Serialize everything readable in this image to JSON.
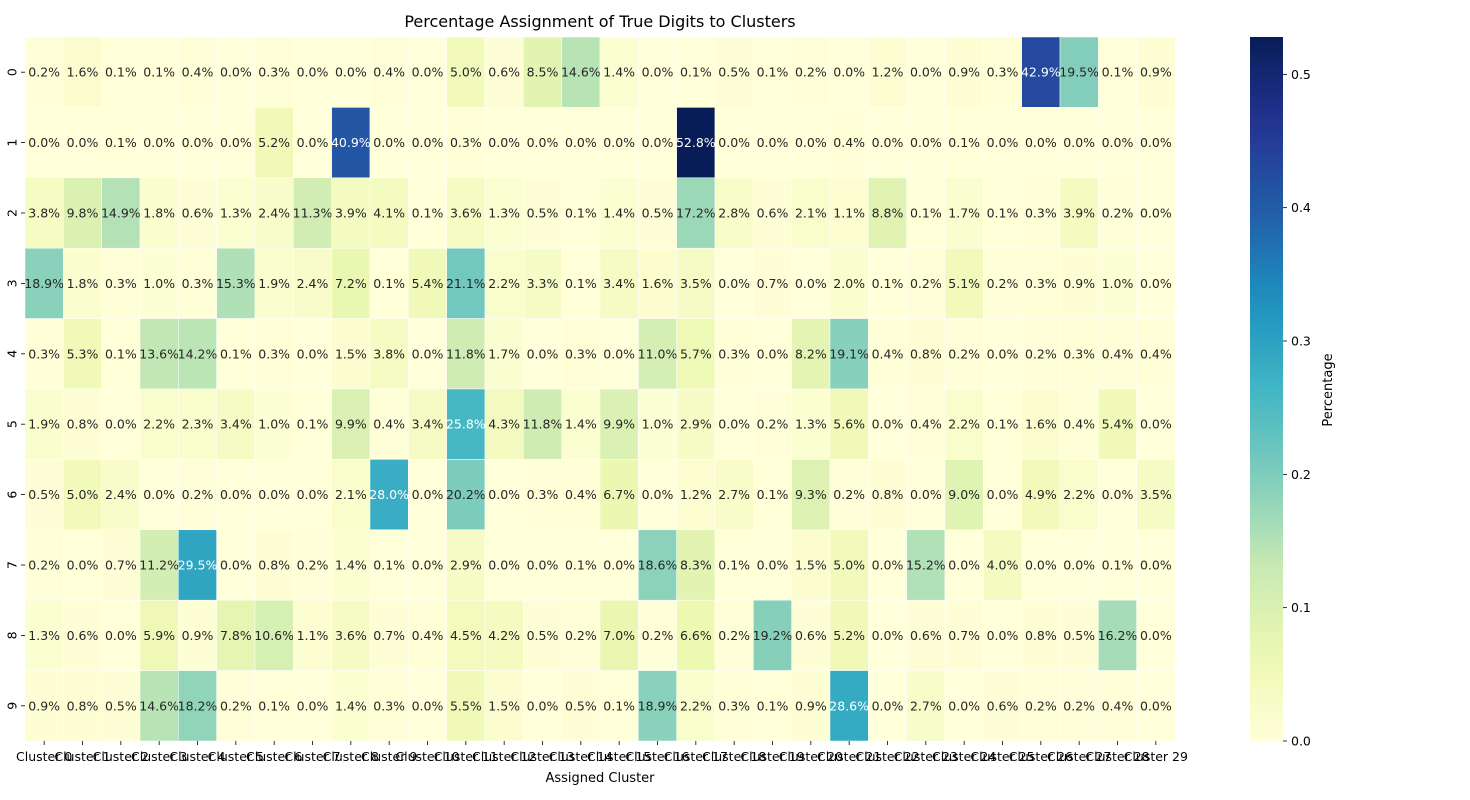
{
  "chart_data": {
    "type": "heatmap",
    "title": "Percentage Assignment of True Digits to Clusters",
    "xlabel": "Assigned Cluster",
    "ylabel": "",
    "colorbar_label": "Percentage",
    "colormap": "YlGnBu",
    "vmin": 0.0,
    "vmax": 0.528,
    "colorbar_ticks": [
      0.0,
      0.1,
      0.2,
      0.3,
      0.4,
      0.5
    ],
    "colorbar_tick_labels": [
      "0.0",
      "0.1",
      "0.2",
      "0.3",
      "0.4",
      "0.5"
    ],
    "x_categories": [
      "Cluster 0",
      "Cluster 1",
      "Cluster 2",
      "Cluster 3",
      "Cluster 4",
      "Cluster 5",
      "Cluster 6",
      "Cluster 7",
      "Cluster 8",
      "Cluster 9",
      "Cluster 10",
      "Cluster 11",
      "Cluster 12",
      "Cluster 13",
      "Cluster 14",
      "Cluster 15",
      "Cluster 16",
      "Cluster 17",
      "Cluster 18",
      "Cluster 19",
      "Cluster 20",
      "Cluster 21",
      "Cluster 22",
      "Cluster 23",
      "Cluster 24",
      "Cluster 25",
      "Cluster 26",
      "Cluster 27",
      "Cluster 28",
      "Cluster 29"
    ],
    "y_categories": [
      "0",
      "1",
      "2",
      "3",
      "4",
      "5",
      "6",
      "7",
      "8",
      "9"
    ],
    "values": [
      [
        0.002,
        0.016,
        0.001,
        0.001,
        0.004,
        0.0,
        0.003,
        0.0,
        0.0,
        0.004,
        0.0,
        0.05,
        0.006,
        0.085,
        0.146,
        0.014,
        0.0,
        0.001,
        0.005,
        0.001,
        0.002,
        0.0,
        0.012,
        0.0,
        0.009,
        0.003,
        0.429,
        0.195,
        0.001,
        0.009
      ],
      [
        0.0,
        0.0,
        0.001,
        0.0,
        0.0,
        0.0,
        0.052,
        0.0,
        0.409,
        0.0,
        0.0,
        0.003,
        0.0,
        0.0,
        0.0,
        0.0,
        0.0,
        0.528,
        0.0,
        0.0,
        0.0,
        0.004,
        0.0,
        0.0,
        0.001,
        0.0,
        0.0,
        0.0,
        0.0,
        0.0
      ],
      [
        0.038,
        0.098,
        0.149,
        0.018,
        0.006,
        0.013,
        0.024,
        0.113,
        0.039,
        0.041,
        0.001,
        0.036,
        0.013,
        0.005,
        0.001,
        0.014,
        0.005,
        0.172,
        0.028,
        0.006,
        0.021,
        0.011,
        0.088,
        0.001,
        0.017,
        0.001,
        0.003,
        0.039,
        0.002,
        0.0
      ],
      [
        0.189,
        0.018,
        0.003,
        0.01,
        0.003,
        0.153,
        0.019,
        0.024,
        0.072,
        0.001,
        0.054,
        0.211,
        0.022,
        0.033,
        0.001,
        0.034,
        0.016,
        0.035,
        0.0,
        0.007,
        0.0,
        0.02,
        0.001,
        0.002,
        0.051,
        0.002,
        0.003,
        0.009,
        0.01,
        0.0
      ],
      [
        0.003,
        0.053,
        0.001,
        0.136,
        0.142,
        0.001,
        0.003,
        0.0,
        0.015,
        0.038,
        0.0,
        0.118,
        0.017,
        0.0,
        0.003,
        0.0,
        0.11,
        0.057,
        0.003,
        0.0,
        0.082,
        0.191,
        0.004,
        0.008,
        0.002,
        0.0,
        0.002,
        0.003,
        0.004,
        0.004
      ],
      [
        0.019,
        0.008,
        0.0,
        0.022,
        0.023,
        0.034,
        0.01,
        0.001,
        0.099,
        0.004,
        0.034,
        0.258,
        0.043,
        0.118,
        0.014,
        0.099,
        0.01,
        0.029,
        0.0,
        0.002,
        0.013,
        0.056,
        0.0,
        0.004,
        0.022,
        0.001,
        0.016,
        0.004,
        0.054,
        0.0
      ],
      [
        0.005,
        0.05,
        0.024,
        0.0,
        0.002,
        0.0,
        0.0,
        0.0,
        0.021,
        0.28,
        0.0,
        0.202,
        0.0,
        0.003,
        0.004,
        0.067,
        0.0,
        0.012,
        0.027,
        0.001,
        0.093,
        0.002,
        0.008,
        0.0,
        0.09,
        0.0,
        0.049,
        0.022,
        0.0,
        0.035
      ],
      [
        0.002,
        0.0,
        0.007,
        0.112,
        0.295,
        0.0,
        0.008,
        0.002,
        0.014,
        0.001,
        0.0,
        0.029,
        0.0,
        0.0,
        0.001,
        0.0,
        0.186,
        0.083,
        0.001,
        0.0,
        0.015,
        0.05,
        0.0,
        0.152,
        0.0,
        0.04,
        0.0,
        0.0,
        0.001,
        0.0
      ],
      [
        0.013,
        0.006,
        0.0,
        0.059,
        0.009,
        0.078,
        0.106,
        0.011,
        0.036,
        0.007,
        0.004,
        0.045,
        0.042,
        0.005,
        0.002,
        0.07,
        0.002,
        0.066,
        0.002,
        0.192,
        0.006,
        0.052,
        0.0,
        0.006,
        0.007,
        0.0,
        0.008,
        0.005,
        0.162,
        0.0
      ],
      [
        0.009,
        0.008,
        0.005,
        0.146,
        0.182,
        0.002,
        0.001,
        0.0,
        0.014,
        0.003,
        0.0,
        0.055,
        0.015,
        0.0,
        0.005,
        0.001,
        0.189,
        0.022,
        0.003,
        0.001,
        0.009,
        0.286,
        0.0,
        0.027,
        0.0,
        0.006,
        0.002,
        0.002,
        0.004,
        0.0
      ]
    ]
  }
}
